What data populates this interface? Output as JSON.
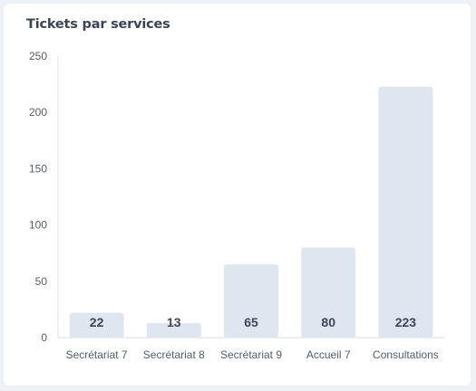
{
  "title": "Tickets par services",
  "colors": {
    "bar": "#dfe6f0",
    "axis": "#d9dde3",
    "text": "#555c68",
    "title": "#3a4457"
  },
  "chart_data": {
    "type": "bar",
    "categories": [
      "Secrétariat 7",
      "Secrétariat 8",
      "Secrétariat 9",
      "Accueil 7",
      "Consultations"
    ],
    "values": [
      22,
      13,
      65,
      80,
      223
    ],
    "yticks": [
      0,
      50,
      100,
      150,
      200,
      250
    ],
    "ylim": [
      0,
      250
    ],
    "grid": false,
    "legend": "none"
  }
}
